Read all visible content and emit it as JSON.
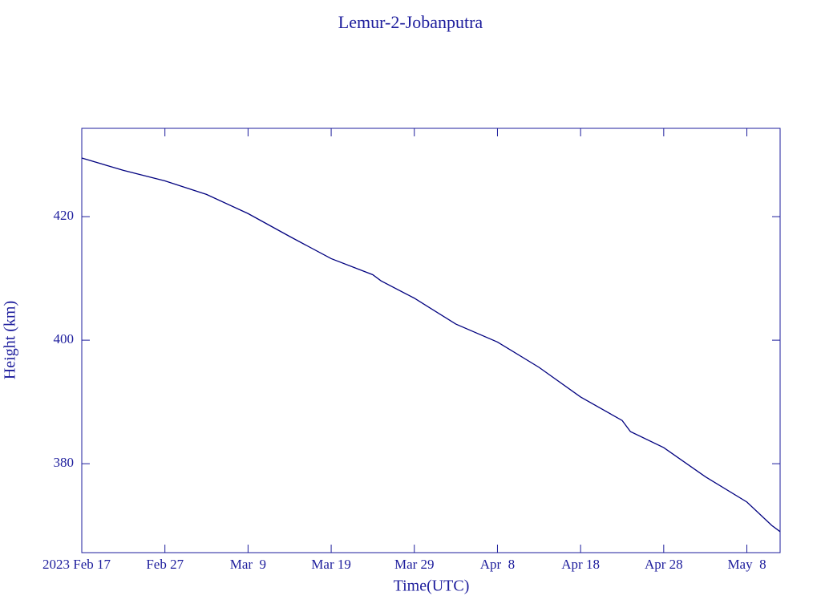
{
  "chart_data": {
    "type": "line",
    "title": "Lemur-2-Jobanputra",
    "x_label": "Time(UTC)",
    "y_label": "Height (km)",
    "x": [
      "2023-02-17",
      "2023-02-22",
      "2023-02-27",
      "2023-03-04",
      "2023-03-09",
      "2023-03-14",
      "2023-03-19",
      "2023-03-24",
      "2023-03-25",
      "2023-03-29",
      "2023-04-03",
      "2023-04-08",
      "2023-04-13",
      "2023-04-18",
      "2023-04-23",
      "2023-04-24",
      "2023-04-28",
      "2023-05-03",
      "2023-05-08",
      "2023-05-11",
      "2023-05-12"
    ],
    "series": [
      {
        "name": "Height",
        "color": "#00007f",
        "values": [
          429.5,
          427.5,
          425.8,
          423.6,
          420.5,
          416.8,
          413.2,
          410.6,
          409.6,
          406.8,
          402.6,
          399.7,
          395.6,
          390.8,
          387.0,
          385.2,
          382.6,
          377.9,
          373.8,
          370.0,
          369.0
        ]
      }
    ],
    "xlim": [
      "2023-02-17",
      "2023-05-12"
    ],
    "xticks": [
      {
        "value": "2023-02-17",
        "label": "2023 Feb 17"
      },
      {
        "value": "2023-02-27",
        "label": "Feb 27"
      },
      {
        "value": "2023-03-09",
        "label": "Mar  9"
      },
      {
        "value": "2023-03-19",
        "label": "Mar 19"
      },
      {
        "value": "2023-03-29",
        "label": "Mar 29"
      },
      {
        "value": "2023-04-08",
        "label": "Apr  8"
      },
      {
        "value": "2023-04-18",
        "label": "Apr 18"
      },
      {
        "value": "2023-04-28",
        "label": "Apr 28"
      },
      {
        "value": "2023-05-08",
        "label": "May  8"
      }
    ],
    "ylim": [
      365.6,
      434.3
    ],
    "yticks": [
      380,
      400,
      420
    ],
    "axis_color": "#1c1c9c"
  }
}
